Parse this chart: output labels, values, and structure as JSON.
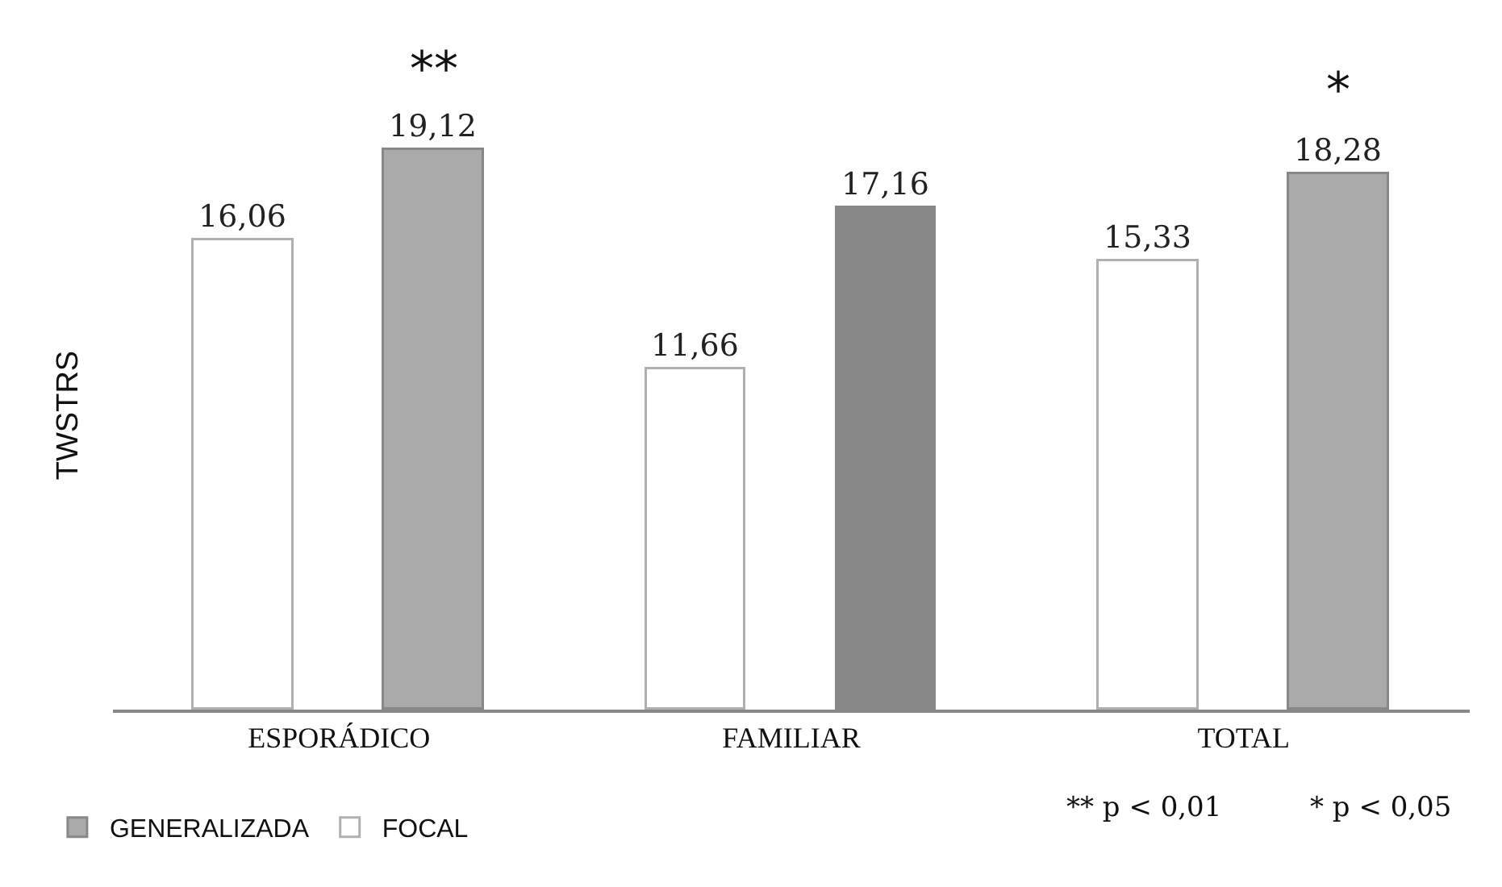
{
  "chart_data": {
    "type": "bar",
    "ylabel": "TWSTRS",
    "categories": [
      "ESPORÁDICO",
      "FAMILIAR",
      "TOTAL"
    ],
    "series": [
      {
        "name": "FOCAL",
        "color": "#ffffff",
        "values": [
          16.06,
          11.66,
          15.33
        ],
        "value_labels": [
          "16,06",
          "11,66",
          "15,33"
        ]
      },
      {
        "name": "GENERALIZADA",
        "color": "#888888",
        "colors": [
          "#aaaaaa",
          "#888888",
          "#aaaaaa"
        ],
        "values": [
          19.12,
          17.16,
          18.28
        ],
        "value_labels": [
          "19,12",
          "17,16",
          "18,28"
        ]
      }
    ],
    "annotations": [
      "**",
      "*",
      "** p < 0,01",
      "* p < 0,05"
    ],
    "legend": "bottom"
  }
}
